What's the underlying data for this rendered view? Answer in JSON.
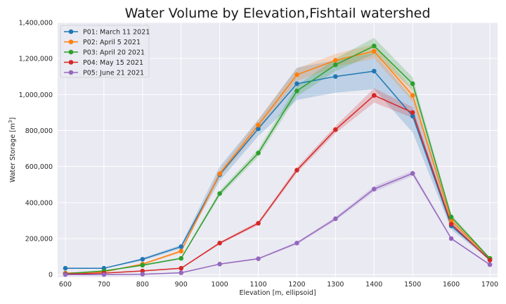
{
  "chart_data": {
    "type": "line",
    "title": "Water Volume by Elevation,Fishtail watershed",
    "xlabel": "Elevation [m, ellipsoid]",
    "ylabel_text": "Water Storage [m",
    "ylabel_sup": "3",
    "ylabel_close": "]",
    "x": [
      600,
      700,
      800,
      900,
      1000,
      1100,
      1200,
      1300,
      1400,
      1500,
      1600,
      1700
    ],
    "xlim": [
      580,
      1720
    ],
    "ylim": [
      -15000,
      1400000
    ],
    "xticks": [
      600,
      700,
      800,
      900,
      1000,
      1100,
      1200,
      1300,
      1400,
      1500,
      1600,
      1700
    ],
    "xtick_labels": [
      "600",
      "700",
      "800",
      "900",
      "1000",
      "1100",
      "1200",
      "1300",
      "1400",
      "1500",
      "1600",
      "1700"
    ],
    "yticks": [
      0,
      200000,
      400000,
      600000,
      800000,
      1000000,
      1200000,
      1400000
    ],
    "ytick_labels": [
      "0",
      "200,000",
      "400,000",
      "600,000",
      "800,000",
      "1,000,000",
      "1,200,000",
      "1,400,000"
    ],
    "grid": true,
    "legend_position": "top-left",
    "series": [
      {
        "name": "P01: March 11 2021",
        "color": "#1f77b4",
        "values": [
          35000,
          35000,
          85000,
          155000,
          555000,
          810000,
          1060000,
          1100000,
          1130000,
          880000,
          270000,
          85000
        ],
        "band_lower": [
          33000,
          33000,
          78000,
          145000,
          520000,
          770000,
          970000,
          1010000,
          1030000,
          790000,
          250000,
          80000
        ],
        "band_upper": [
          37000,
          37000,
          92000,
          165000,
          600000,
          860000,
          1150000,
          1190000,
          1230000,
          980000,
          295000,
          90000
        ]
      },
      {
        "name": "P02: April 5 2021",
        "color": "#ff7f0e",
        "values": [
          8000,
          15000,
          58000,
          130000,
          560000,
          830000,
          1110000,
          1190000,
          1240000,
          995000,
          300000,
          90000
        ],
        "band_lower": [
          6000,
          13000,
          53000,
          122000,
          540000,
          800000,
          1075000,
          1155000,
          1200000,
          960000,
          285000,
          86000
        ],
        "band_upper": [
          10000,
          17000,
          63000,
          138000,
          580000,
          860000,
          1145000,
          1225000,
          1280000,
          1030000,
          315000,
          94000
        ]
      },
      {
        "name": "P03: April 20 2021",
        "color": "#2ca02c",
        "values": [
          5000,
          20000,
          52000,
          90000,
          450000,
          675000,
          1020000,
          1165000,
          1270000,
          1060000,
          320000,
          90000
        ],
        "band_lower": [
          3000,
          18000,
          48000,
          85000,
          435000,
          655000,
          990000,
          1130000,
          1225000,
          1025000,
          305000,
          86000
        ],
        "band_upper": [
          7000,
          22000,
          56000,
          95000,
          465000,
          695000,
          1050000,
          1200000,
          1315000,
          1095000,
          335000,
          94000
        ]
      },
      {
        "name": "P04: May 15 2021",
        "color": "#d62728",
        "values": [
          3000,
          8000,
          20000,
          35000,
          175000,
          285000,
          580000,
          805000,
          995000,
          900000,
          280000,
          80000
        ],
        "band_lower": [
          2000,
          6000,
          17000,
          32000,
          168000,
          275000,
          565000,
          785000,
          955000,
          870000,
          270000,
          76000
        ],
        "band_upper": [
          4000,
          10000,
          23000,
          38000,
          182000,
          295000,
          595000,
          825000,
          1035000,
          930000,
          290000,
          84000
        ]
      },
      {
        "name": "P05: June 21 2021",
        "color": "#9467bd",
        "values": [
          0,
          0,
          2000,
          10000,
          58000,
          88000,
          175000,
          310000,
          475000,
          562000,
          200000,
          55000
        ],
        "band_lower": [
          0,
          0,
          1000,
          8000,
          55000,
          84000,
          168000,
          300000,
          460000,
          548000,
          195000,
          52000
        ],
        "band_upper": [
          1000,
          1000,
          3000,
          12000,
          61000,
          92000,
          182000,
          320000,
          490000,
          576000,
          205000,
          58000
        ]
      }
    ]
  }
}
